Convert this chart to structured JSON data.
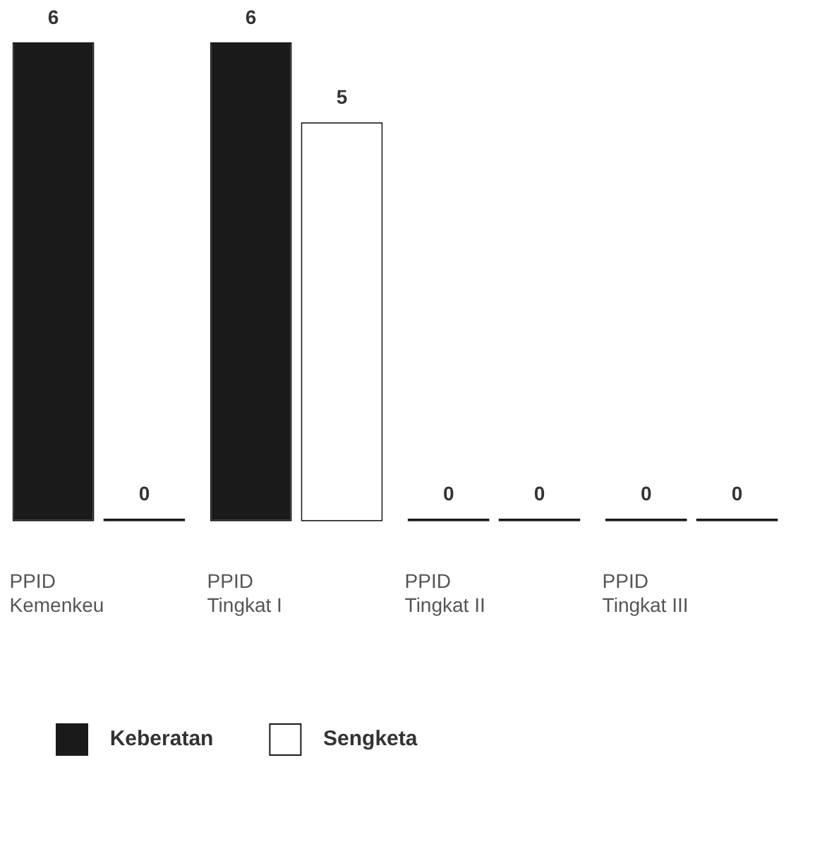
{
  "chart_data": {
    "type": "bar",
    "categories": [
      "PPID\nKemenkeu",
      "PPID\nTingkat I",
      "PPID\nTingkat II",
      "PPID\nTingkat III"
    ],
    "series": [
      {
        "name": "Keberatan",
        "color": "#1a1a1a",
        "values": [
          6,
          6,
          0,
          0
        ]
      },
      {
        "name": "Sengketa",
        "color": "#ffffff",
        "colors": [
          "#1a1a1a",
          "#ffffff",
          "#1a1a1a",
          "#1a1a1a"
        ],
        "values": [
          0,
          5,
          0,
          0
        ]
      }
    ],
    "data_labels": true,
    "grid": false,
    "legend": "bottom"
  }
}
